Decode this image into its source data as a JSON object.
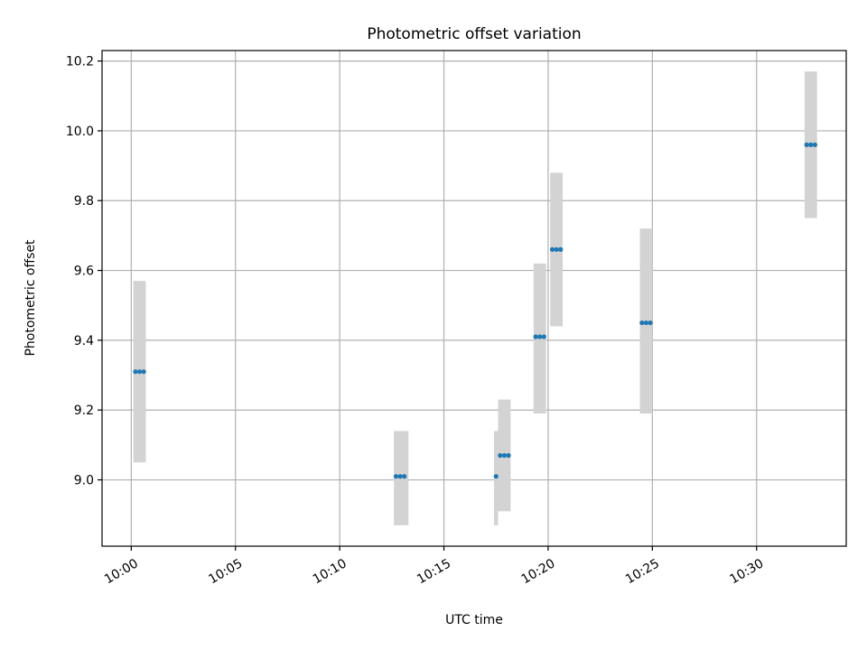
{
  "chart_data": {
    "type": "scatter",
    "title": "Photometric offset variation",
    "xlabel": "UTC time",
    "ylabel": "Photometric offset",
    "x_axis": "time",
    "xlim": [
      "09:58:36",
      "10:34:18"
    ],
    "ylim": [
      8.81,
      10.23
    ],
    "xticks": [
      "10:00",
      "10:05",
      "10:10",
      "10:15",
      "10:20",
      "10:25",
      "10:30"
    ],
    "yticks": [
      "9.0",
      "9.2",
      "9.4",
      "9.6",
      "9.8",
      "10.0",
      "10.2"
    ],
    "grid": true,
    "point_color": "#1f77b4",
    "band_color": "#d3d3d3",
    "bands": [
      {
        "start": "10:00:06",
        "end": "10:00:42",
        "low": 9.05,
        "high": 9.57
      },
      {
        "start": "10:12:36",
        "end": "10:13:18",
        "low": 8.87,
        "high": 9.14
      },
      {
        "start": "10:17:24",
        "end": "10:17:36",
        "low": 8.87,
        "high": 9.14
      },
      {
        "start": "10:17:36",
        "end": "10:18:12",
        "low": 8.91,
        "high": 9.23
      },
      {
        "start": "10:19:18",
        "end": "10:19:54",
        "low": 9.19,
        "high": 9.62
      },
      {
        "start": "10:20:06",
        "end": "10:20:42",
        "low": 9.44,
        "high": 9.88
      },
      {
        "start": "10:24:24",
        "end": "10:25:00",
        "low": 9.19,
        "high": 9.72
      },
      {
        "start": "10:32:18",
        "end": "10:32:54",
        "low": 9.75,
        "high": 10.17
      }
    ],
    "points": [
      {
        "time": "10:00:12",
        "y": 9.31
      },
      {
        "time": "10:00:24",
        "y": 9.31
      },
      {
        "time": "10:00:36",
        "y": 9.31
      },
      {
        "time": "10:12:42",
        "y": 9.01
      },
      {
        "time": "10:12:54",
        "y": 9.01
      },
      {
        "time": "10:13:06",
        "y": 9.01
      },
      {
        "time": "10:17:30",
        "y": 9.01
      },
      {
        "time": "10:17:42",
        "y": 9.07
      },
      {
        "time": "10:17:54",
        "y": 9.07
      },
      {
        "time": "10:18:06",
        "y": 9.07
      },
      {
        "time": "10:19:24",
        "y": 9.41
      },
      {
        "time": "10:19:36",
        "y": 9.41
      },
      {
        "time": "10:19:48",
        "y": 9.41
      },
      {
        "time": "10:20:12",
        "y": 9.66
      },
      {
        "time": "10:20:24",
        "y": 9.66
      },
      {
        "time": "10:20:36",
        "y": 9.66
      },
      {
        "time": "10:24:30",
        "y": 9.45
      },
      {
        "time": "10:24:42",
        "y": 9.45
      },
      {
        "time": "10:24:54",
        "y": 9.45
      },
      {
        "time": "10:32:24",
        "y": 9.96
      },
      {
        "time": "10:32:36",
        "y": 9.96
      },
      {
        "time": "10:32:48",
        "y": 9.96
      }
    ]
  }
}
